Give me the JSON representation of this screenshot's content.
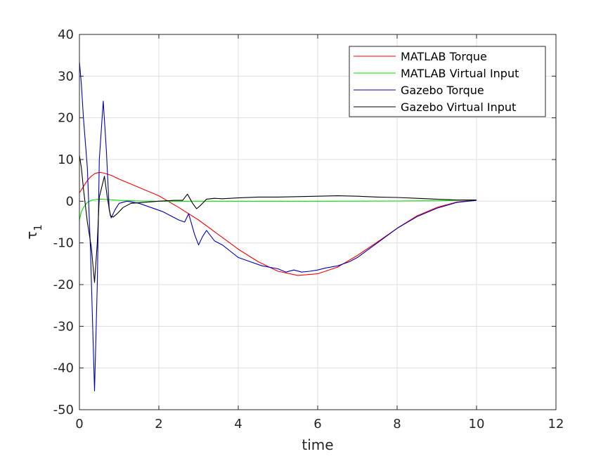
{
  "chart_data": {
    "type": "line",
    "title": "",
    "xlabel": "time",
    "ylabel": "τ",
    "ylabel_subscript": "1",
    "xlim": [
      0,
      12
    ],
    "ylim": [
      -50,
      40
    ],
    "xticks": [
      0,
      2,
      4,
      6,
      8,
      10,
      12
    ],
    "yticks": [
      -50,
      -40,
      -30,
      -20,
      -10,
      0,
      10,
      20,
      30,
      40
    ],
    "grid": true,
    "legend_position": "top-right",
    "series": [
      {
        "name": "MATLAB Torque",
        "color": "#ff0000",
        "points": [
          [
            0,
            2.0
          ],
          [
            0.1,
            3.5
          ],
          [
            0.2,
            5.0
          ],
          [
            0.3,
            6.0
          ],
          [
            0.4,
            6.7
          ],
          [
            0.5,
            6.9
          ],
          [
            0.6,
            6.8
          ],
          [
            0.8,
            6.2
          ],
          [
            1.0,
            5.3
          ],
          [
            1.5,
            3.3
          ],
          [
            2.0,
            1.3
          ],
          [
            2.5,
            -1.5
          ],
          [
            3.0,
            -4.5
          ],
          [
            3.5,
            -8.0
          ],
          [
            4.0,
            -11.5
          ],
          [
            4.5,
            -14.5
          ],
          [
            5.0,
            -16.8
          ],
          [
            5.5,
            -17.8
          ],
          [
            6.0,
            -17.4
          ],
          [
            6.5,
            -15.8
          ],
          [
            7.0,
            -13.0
          ],
          [
            7.5,
            -9.8
          ],
          [
            8.0,
            -6.5
          ],
          [
            8.5,
            -3.5
          ],
          [
            9.0,
            -1.5
          ],
          [
            9.5,
            -0.2
          ],
          [
            10.0,
            0.3
          ]
        ]
      },
      {
        "name": "MATLAB Virtual Input",
        "color": "#00dd00",
        "points": [
          [
            0,
            -4.5
          ],
          [
            0.05,
            -2.5
          ],
          [
            0.1,
            -1.5
          ],
          [
            0.2,
            -0.3
          ],
          [
            0.3,
            0.2
          ],
          [
            0.4,
            0.4
          ],
          [
            0.5,
            0.5
          ],
          [
            0.7,
            0.4
          ],
          [
            1.0,
            0.2
          ],
          [
            1.5,
            0.05
          ],
          [
            2.0,
            0
          ],
          [
            4.0,
            0
          ],
          [
            6.0,
            0
          ],
          [
            8.0,
            0.05
          ],
          [
            9.0,
            0.1
          ],
          [
            10.0,
            0.3
          ]
        ]
      },
      {
        "name": "Gazebo Torque",
        "color": "#0000bb",
        "points": [
          [
            0,
            33.5
          ],
          [
            0.05,
            28
          ],
          [
            0.1,
            20
          ],
          [
            0.2,
            8
          ],
          [
            0.28,
            -12
          ],
          [
            0.38,
            -45.5
          ],
          [
            0.45,
            -20
          ],
          [
            0.5,
            10
          ],
          [
            0.6,
            24
          ],
          [
            0.68,
            12
          ],
          [
            0.75,
            -2
          ],
          [
            0.8,
            -4
          ],
          [
            0.9,
            -2
          ],
          [
            1.0,
            -0.5
          ],
          [
            1.2,
            0
          ],
          [
            1.5,
            -0.5
          ],
          [
            1.8,
            -1.5
          ],
          [
            2.1,
            -2.5
          ],
          [
            2.5,
            -4.5
          ],
          [
            2.65,
            -5
          ],
          [
            2.75,
            -3
          ],
          [
            2.9,
            -8
          ],
          [
            3.0,
            -10.5
          ],
          [
            3.1,
            -8.5
          ],
          [
            3.2,
            -7
          ],
          [
            3.4,
            -9.5
          ],
          [
            3.6,
            -10.5
          ],
          [
            3.8,
            -12
          ],
          [
            4.0,
            -13.5
          ],
          [
            4.3,
            -14.5
          ],
          [
            4.6,
            -15.5
          ],
          [
            5.0,
            -16.2
          ],
          [
            5.2,
            -17
          ],
          [
            5.4,
            -16.5
          ],
          [
            5.6,
            -17
          ],
          [
            5.8,
            -16.8
          ],
          [
            6.0,
            -16.5
          ],
          [
            6.2,
            -16
          ],
          [
            6.5,
            -15.5
          ],
          [
            6.8,
            -14.5
          ],
          [
            7.0,
            -13.5
          ],
          [
            7.5,
            -10
          ],
          [
            8.0,
            -6.5
          ],
          [
            8.5,
            -3.7
          ],
          [
            9.0,
            -1.7
          ],
          [
            9.5,
            -0.3
          ],
          [
            10.0,
            0.2
          ]
        ]
      },
      {
        "name": "Gazebo Virtual Input",
        "color": "#000000",
        "points": [
          [
            0,
            11
          ],
          [
            0.05,
            8
          ],
          [
            0.1,
            3
          ],
          [
            0.2,
            -5
          ],
          [
            0.3,
            -11
          ],
          [
            0.38,
            -19.5
          ],
          [
            0.45,
            -10
          ],
          [
            0.5,
            1
          ],
          [
            0.63,
            6
          ],
          [
            0.7,
            1
          ],
          [
            0.78,
            -3.5
          ],
          [
            0.85,
            -3.8
          ],
          [
            0.95,
            -3
          ],
          [
            1.1,
            -1.5
          ],
          [
            1.3,
            -0.5
          ],
          [
            1.6,
            -0.3
          ],
          [
            2.0,
            0
          ],
          [
            2.4,
            0.2
          ],
          [
            2.6,
            0.2
          ],
          [
            2.72,
            1.7
          ],
          [
            2.85,
            -0.5
          ],
          [
            2.95,
            -1.8
          ],
          [
            3.05,
            -1
          ],
          [
            3.2,
            0.5
          ],
          [
            3.4,
            0.7
          ],
          [
            3.6,
            0.6
          ],
          [
            4.0,
            0.8
          ],
          [
            4.5,
            1.0
          ],
          [
            5.0,
            1.0
          ],
          [
            5.5,
            1.1
          ],
          [
            6.0,
            1.2
          ],
          [
            6.5,
            1.3
          ],
          [
            7.0,
            1.2
          ],
          [
            7.5,
            1.0
          ],
          [
            8.0,
            0.9
          ],
          [
            8.5,
            0.7
          ],
          [
            9.0,
            0.5
          ],
          [
            9.5,
            0.3
          ],
          [
            10.0,
            0.3
          ]
        ]
      }
    ]
  }
}
